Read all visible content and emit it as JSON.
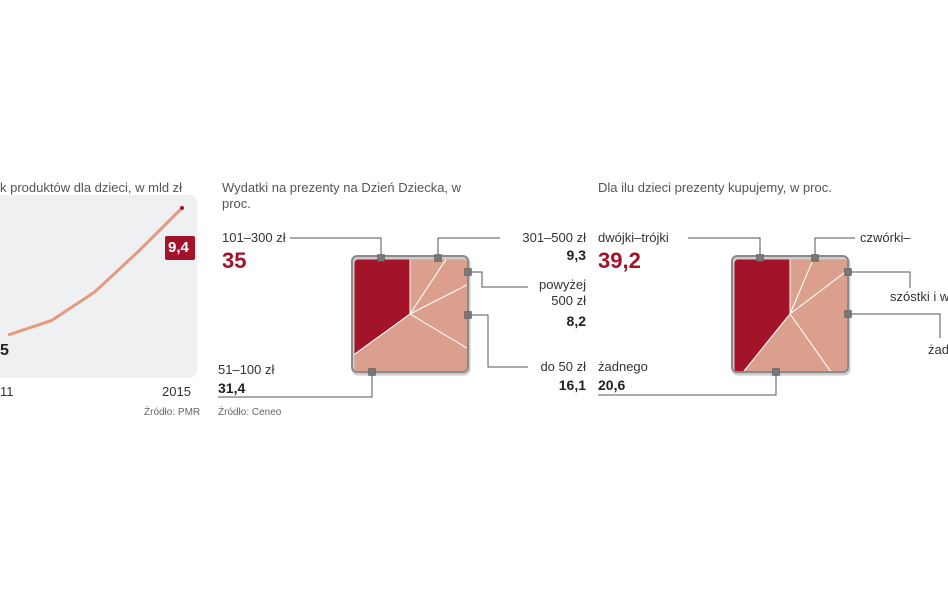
{
  "chart_data": [
    {
      "type": "line",
      "title": "k produktów dla dzieci, w mld zł",
      "categories": [
        "11",
        null,
        null,
        null,
        "2015"
      ],
      "values": [
        5,
        5.5,
        6.5,
        7.9,
        9.4
      ],
      "value_labels": [
        "5",
        null,
        null,
        null,
        "9,4"
      ],
      "color": "#e39a80",
      "source": "Źródło: PMR"
    },
    {
      "type": "pie",
      "title": "Wydatki na prezenty na Dzień Dziecka, w proc.",
      "categories": [
        "101–300 zł",
        "301–500 zł",
        "powyżej 500 zł",
        "do 50 zł",
        "51–100 zł"
      ],
      "values": [
        35,
        9.3,
        8.2,
        16.1,
        31.4
      ],
      "value_labels": [
        "35",
        "9,3",
        "8,2",
        "16,1",
        "31,4"
      ],
      "colors": [
        "#a3142a",
        "#dba08d",
        "#dba08d",
        "#dba08d",
        "#dba08d"
      ],
      "source": "Źródło: Ceneo"
    },
    {
      "type": "pie",
      "title": "Dla ilu dzieci prezenty kupujemy, w proc.",
      "categories": [
        "dwójki–trójki",
        "czwórki–",
        "szóstki i w",
        "żad",
        "żadnego"
      ],
      "values": [
        39.2,
        6.4,
        8.3,
        25.5,
        20.6
      ],
      "value_labels": [
        "39,2",
        null,
        null,
        null,
        "20,6"
      ],
      "colors": [
        "#a3142a",
        "#dba08d",
        "#dba08d",
        "#dba08d",
        "#dba08d"
      ]
    }
  ]
}
